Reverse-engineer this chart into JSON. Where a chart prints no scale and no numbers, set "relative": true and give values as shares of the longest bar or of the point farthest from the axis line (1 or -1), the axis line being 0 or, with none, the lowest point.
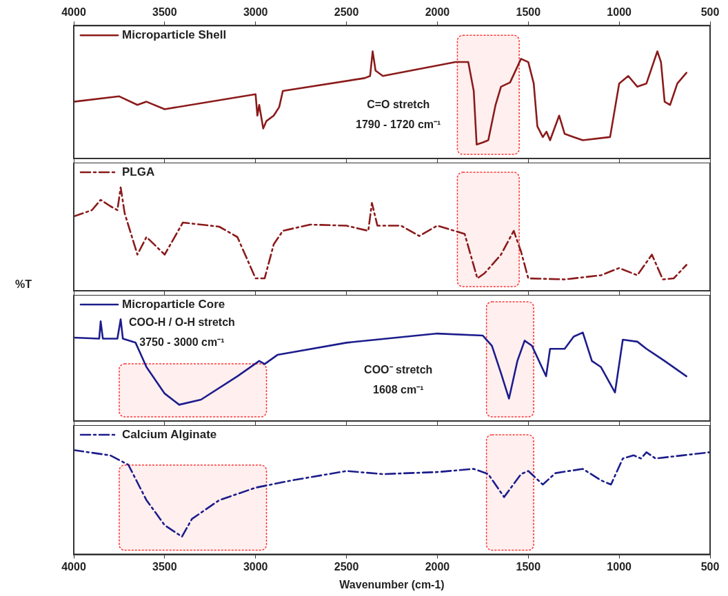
{
  "chart_data": [
    {
      "type": "line",
      "xlim": [
        4000,
        500
      ],
      "xticks": [
        4000,
        3500,
        3000,
        2500,
        2000,
        1500,
        1000,
        500
      ],
      "x2lim": [
        4000,
        500
      ],
      "x2ticks": [
        4000,
        3500,
        3000,
        2500,
        2000,
        1500,
        1000,
        500
      ],
      "relative": true,
      "tick_labels": false,
      "legend": "top left",
      "line_style": "solid",
      "series": [
        {
          "name": "Microparticle Shell",
          "color": "#8b1a1a",
          "x": [
            4000,
            3750,
            3650,
            3600,
            3500,
            3000,
            2990,
            2980,
            2958,
            2940,
            2900,
            2870,
            2850,
            2400,
            2370,
            2356,
            2340,
            2300,
            1900,
            1830,
            1800,
            1784,
            1750,
            1720,
            1680,
            1650,
            1600,
            1540,
            1500,
            1470,
            1450,
            1420,
            1400,
            1380,
            1330,
            1300,
            1250,
            1200,
            1050,
            1000,
            950,
            900,
            850,
            790,
            770,
            750,
            720,
            680,
            630
          ],
          "values": [
            0.53,
            0.58,
            0.5,
            0.53,
            0.46,
            0.6,
            0.4,
            0.5,
            0.28,
            0.35,
            0.4,
            0.48,
            0.63,
            0.75,
            0.77,
            1.0,
            0.82,
            0.77,
            0.9,
            0.9,
            0.63,
            0.13,
            0.15,
            0.17,
            0.5,
            0.67,
            0.71,
            0.93,
            0.9,
            0.7,
            0.3,
            0.2,
            0.25,
            0.17,
            0.4,
            0.23,
            0.2,
            0.17,
            0.2,
            0.7,
            0.77,
            0.67,
            0.7,
            1.0,
            0.9,
            0.53,
            0.5,
            0.7,
            0.8
          ]
        }
      ],
      "bands": [
        {
          "axis": "x",
          "from": 1890,
          "to": 1550,
          "color": "#ff3333"
        }
      ],
      "annotations": [
        "C=O stretch",
        "1790 - 1720 cm⁻¹"
      ]
    },
    {
      "type": "line",
      "ylabel": "%T",
      "xlim": [
        4000,
        500
      ],
      "xticks": [
        4000,
        3500,
        3000,
        2500,
        2000,
        1500,
        1000,
        500
      ],
      "relative": true,
      "tick_labels": false,
      "legend": "top left",
      "line_style": "dashed",
      "series": [
        {
          "name": "PLGA",
          "color": "#8b1a1a",
          "x": [
            4000,
            3900,
            3852,
            3800,
            3760,
            3742,
            3720,
            3650,
            3600,
            3500,
            3400,
            3200,
            3100,
            3000,
            2950,
            2900,
            2850,
            2700,
            2500,
            2380,
            2360,
            2330,
            2200,
            2100,
            2000,
            1850,
            1780,
            1740,
            1650,
            1580,
            1540,
            1500,
            1300,
            1100,
            1000,
            900,
            820,
            760,
            700,
            630
          ],
          "values": [
            0.72,
            0.78,
            0.88,
            0.82,
            0.78,
            1.0,
            0.75,
            0.35,
            0.52,
            0.35,
            0.66,
            0.62,
            0.52,
            0.12,
            0.12,
            0.45,
            0.58,
            0.64,
            0.63,
            0.58,
            0.85,
            0.63,
            0.63,
            0.53,
            0.63,
            0.55,
            0.12,
            0.17,
            0.35,
            0.58,
            0.38,
            0.12,
            0.11,
            0.15,
            0.22,
            0.15,
            0.35,
            0.11,
            0.12,
            0.25
          ]
        }
      ],
      "bands": [
        {
          "axis": "x",
          "from": 1890,
          "to": 1550,
          "color": "#ff3333"
        }
      ]
    },
    {
      "type": "line",
      "xlim": [
        4000,
        500
      ],
      "xticks": [
        4000,
        3500,
        3000,
        2500,
        2000,
        1500,
        1000,
        500
      ],
      "relative": true,
      "tick_labels": false,
      "legend": "top left",
      "line_style": "solid",
      "series": [
        {
          "name": "Microparticle Core",
          "color": "#1c1c8c",
          "x": [
            4000,
            3860,
            3852,
            3840,
            3760,
            3742,
            3730,
            3660,
            3600,
            3500,
            3420,
            3300,
            3100,
            2980,
            2950,
            2880,
            2500,
            2000,
            1750,
            1700,
            1650,
            1606,
            1560,
            1520,
            1480,
            1402,
            1380,
            1300,
            1250,
            1200,
            1150,
            1100,
            1023,
            980,
            900,
            850,
            750,
            630
          ],
          "values": [
            0.82,
            0.81,
            0.98,
            0.81,
            0.81,
            1.0,
            0.81,
            0.77,
            0.53,
            0.27,
            0.16,
            0.21,
            0.44,
            0.59,
            0.56,
            0.65,
            0.77,
            0.86,
            0.84,
            0.74,
            0.47,
            0.22,
            0.59,
            0.79,
            0.74,
            0.44,
            0.71,
            0.71,
            0.83,
            0.87,
            0.59,
            0.53,
            0.28,
            0.8,
            0.78,
            0.71,
            0.59,
            0.44
          ]
        }
      ],
      "bands": [
        {
          "axis": "x",
          "from": 3750,
          "to": 2940,
          "color": "#ff3333"
        },
        {
          "axis": "x",
          "from": 1730,
          "to": 1470,
          "color": "#ff3333"
        }
      ],
      "annotations": [
        "COO-H / O-H stretch",
        "3750 - 3000 cm⁻¹",
        "COO⁻ stretch",
        "1608 cm⁻¹"
      ]
    },
    {
      "type": "line",
      "xlabel": "Wavenumber (cm-1)",
      "xlim": [
        4000,
        500
      ],
      "xticks": [
        4000,
        3500,
        3000,
        2500,
        2000,
        1500,
        1000,
        500
      ],
      "relative": true,
      "tick_labels": "x",
      "legend": "top left",
      "line_style": "dashed",
      "series": [
        {
          "name": "Calcium Alginate",
          "color": "#1c1c8c",
          "x": [
            4000,
            3800,
            3700,
            3600,
            3500,
            3405,
            3350,
            3200,
            3000,
            2800,
            2500,
            2300,
            2000,
            1800,
            1720,
            1633,
            1540,
            1500,
            1420,
            1350,
            1200,
            1100,
            1045,
            980,
            920,
            880,
            850,
            800,
            650,
            500
          ],
          "values": [
            1.0,
            0.95,
            0.86,
            0.52,
            0.28,
            0.17,
            0.34,
            0.52,
            0.64,
            0.71,
            0.8,
            0.77,
            0.79,
            0.82,
            0.77,
            0.55,
            0.77,
            0.8,
            0.67,
            0.78,
            0.82,
            0.71,
            0.67,
            0.92,
            0.95,
            0.92,
            0.98,
            0.92,
            0.95,
            0.98
          ]
        }
      ],
      "bands": [
        {
          "axis": "x",
          "from": 3750,
          "to": 2940,
          "color": "#ff3333"
        },
        {
          "axis": "x",
          "from": 1730,
          "to": 1470,
          "color": "#ff3333"
        }
      ]
    }
  ]
}
